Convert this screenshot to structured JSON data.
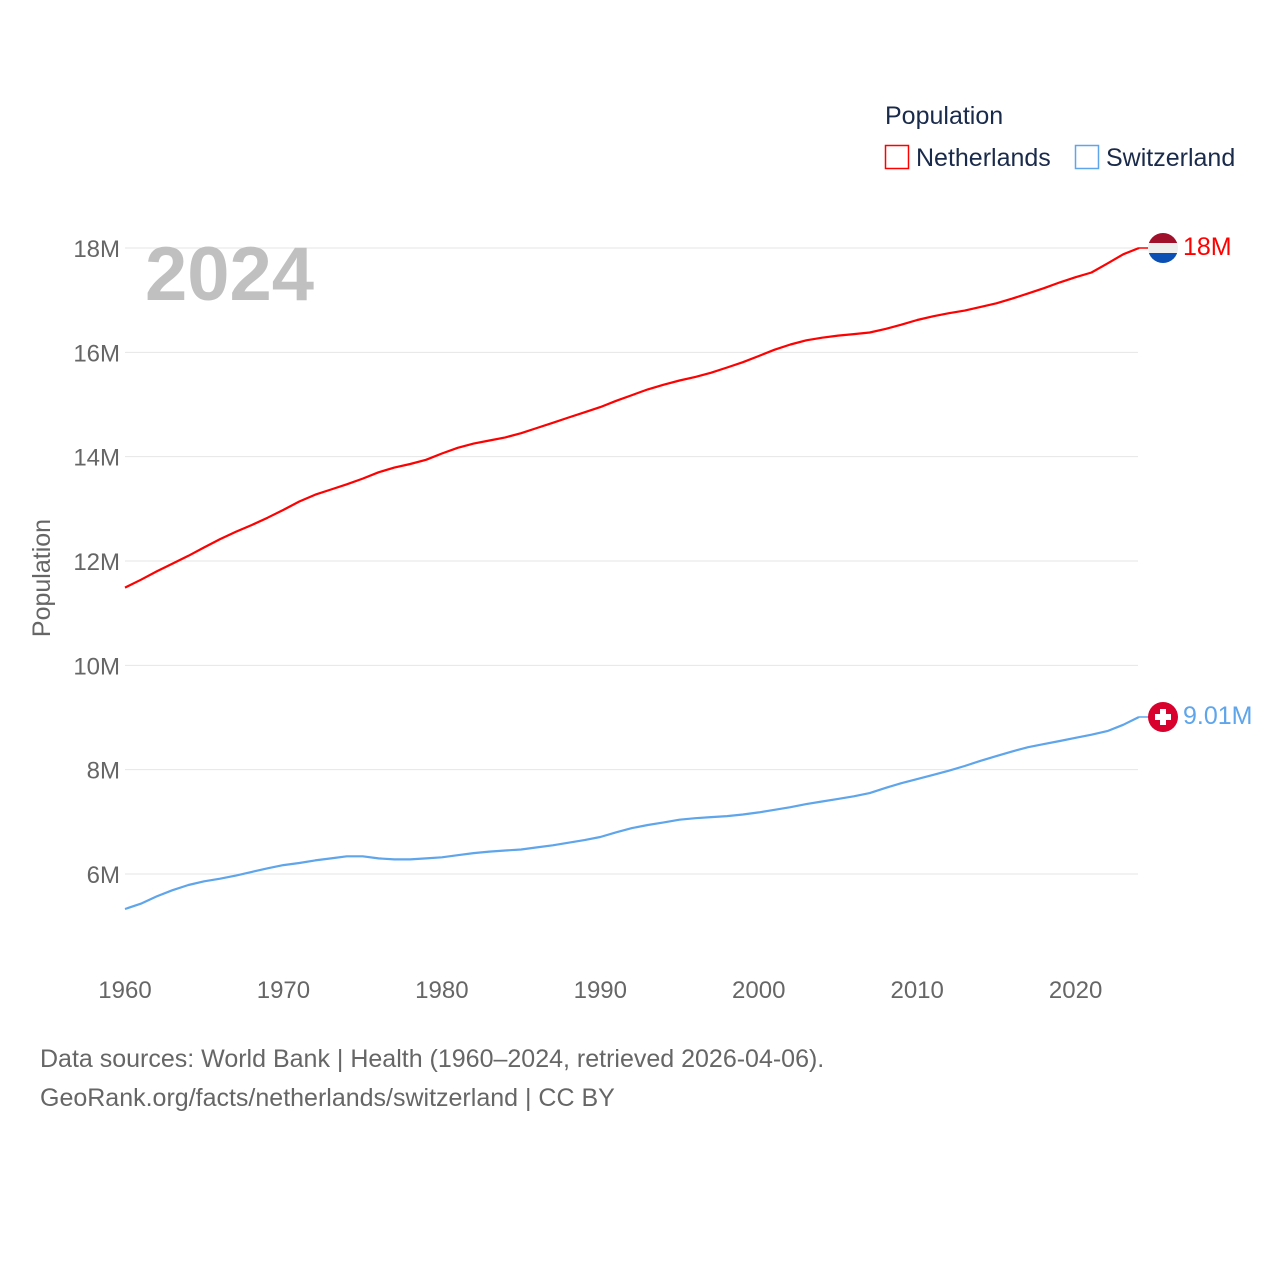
{
  "chart_data": {
    "type": "line",
    "title": "",
    "year_label": "2024",
    "xlabel": "",
    "ylabel": "Population",
    "xlim": [
      1960,
      2024
    ],
    "ylim": [
      5,
      18.5
    ],
    "x_ticks": [
      "1960",
      "1970",
      "1980",
      "1990",
      "2000",
      "2010",
      "2020"
    ],
    "y_ticks": [
      {
        "v": 6,
        "label": "6M"
      },
      {
        "v": 8,
        "label": "8M"
      },
      {
        "v": 10,
        "label": "10M"
      },
      {
        "v": 12,
        "label": "12M"
      },
      {
        "v": 14,
        "label": "14M"
      },
      {
        "v": 16,
        "label": "16M"
      },
      {
        "v": 18,
        "label": "18M"
      }
    ],
    "grid": true,
    "legend": {
      "title": "Population",
      "placement": "top-right"
    },
    "x_start": 1960,
    "series": [
      {
        "name": "Netherlands",
        "color": "#ff0000",
        "end_label": "18M",
        "flag": "netherlands-flag",
        "values": [
          11.49,
          11.64,
          11.8,
          11.95,
          12.1,
          12.26,
          12.42,
          12.56,
          12.69,
          12.83,
          12.98,
          13.14,
          13.27,
          13.37,
          13.47,
          13.58,
          13.7,
          13.79,
          13.86,
          13.94,
          14.06,
          14.17,
          14.25,
          14.31,
          14.37,
          14.45,
          14.55,
          14.65,
          14.75,
          14.85,
          14.95,
          15.07,
          15.18,
          15.29,
          15.38,
          15.46,
          15.53,
          15.61,
          15.71,
          15.81,
          15.93,
          16.05,
          16.15,
          16.23,
          16.28,
          16.32,
          16.35,
          16.38,
          16.45,
          16.53,
          16.62,
          16.69,
          16.75,
          16.8,
          16.87,
          16.94,
          17.03,
          17.13,
          17.23,
          17.34,
          17.44,
          17.53,
          17.7,
          17.88,
          18.0
        ]
      },
      {
        "name": "Switzerland",
        "color": "#5ea5eb",
        "end_label": "9.01M",
        "flag": "switzerland-flag",
        "values": [
          5.33,
          5.43,
          5.57,
          5.69,
          5.79,
          5.86,
          5.91,
          5.97,
          6.04,
          6.11,
          6.17,
          6.21,
          6.26,
          6.3,
          6.34,
          6.34,
          6.3,
          6.28,
          6.28,
          6.3,
          6.32,
          6.36,
          6.4,
          6.43,
          6.45,
          6.47,
          6.51,
          6.55,
          6.6,
          6.65,
          6.71,
          6.8,
          6.88,
          6.94,
          6.99,
          7.04,
          7.07,
          7.09,
          7.11,
          7.14,
          7.18,
          7.23,
          7.28,
          7.34,
          7.39,
          7.44,
          7.49,
          7.55,
          7.65,
          7.74,
          7.82,
          7.9,
          7.98,
          8.07,
          8.17,
          8.26,
          8.35,
          8.43,
          8.49,
          8.55,
          8.61,
          8.67,
          8.74,
          8.86,
          9.01
        ]
      }
    ]
  },
  "footer": {
    "line1": "Data sources: World Bank | Health (1960–2024, retrieved 2026-04-06).",
    "line2": "GeoRank.org/facts/netherlands/switzerland | CC BY"
  }
}
